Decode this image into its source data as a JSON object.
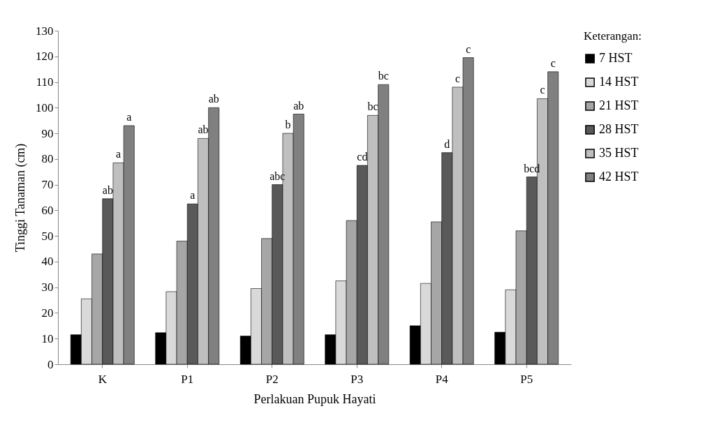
{
  "chart_data": {
    "type": "bar",
    "xlabel": "Perlakuan Pupuk Hayati",
    "ylabel": "Tinggi Tanaman (cm)",
    "legend_title": "Keterangan:",
    "categories": [
      "K",
      "P1",
      "P2",
      "P3",
      "P4",
      "P5"
    ],
    "series": [
      {
        "name": "7 HST",
        "color": "#000000",
        "values": [
          11.5,
          12.3,
          11,
          11.5,
          15,
          12.5
        ]
      },
      {
        "name": "14 HST",
        "color": "#d9d9d9",
        "values": [
          25.5,
          28.3,
          29.5,
          32.5,
          31.5,
          29
        ]
      },
      {
        "name": "21 HST",
        "color": "#a6a6a6",
        "values": [
          43,
          48,
          49,
          56,
          55.5,
          52
        ]
      },
      {
        "name": "28 HST",
        "color": "#595959",
        "values": [
          64.5,
          62.5,
          70,
          77.5,
          82.5,
          73
        ],
        "value_labels": [
          "ab",
          "a",
          "abc",
          "cd",
          "d",
          "bcd"
        ]
      },
      {
        "name": "35 HST",
        "color": "#bfbfbf",
        "values": [
          78.5,
          88,
          90,
          97,
          108,
          103.5
        ],
        "value_labels": [
          "a",
          "ab",
          "b",
          "bc",
          "c",
          "c"
        ]
      },
      {
        "name": "42 HST",
        "color": "#808080",
        "values": [
          93,
          100,
          97.5,
          109,
          119.5,
          114
        ],
        "value_labels": [
          "a",
          "ab",
          "ab",
          "bc",
          "c",
          "c"
        ]
      }
    ],
    "ylim": [
      0,
      130
    ],
    "yticks": [
      0,
      10,
      20,
      30,
      40,
      50,
      60,
      70,
      80,
      90,
      100,
      110,
      120,
      130
    ],
    "legend": "right"
  }
}
